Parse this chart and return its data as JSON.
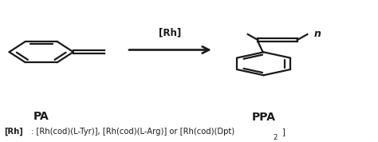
{
  "background_color": "#ffffff",
  "fig_width": 4.74,
  "fig_height": 1.78,
  "dpi": 100,
  "text_color": "#1a1a1a",
  "line_width": 1.6,
  "line_color": "#1a1a1a",
  "pa_label": "PA",
  "ppa_label": "PPA",
  "arrow_label": "[Rh]",
  "bottom_bold": "[Rh]",
  "bottom_colon": ": [Rh(cod)(L-Tyr)], [Rh(cod)(L-Arg)] or [Rh(cod)(Dpt)",
  "bottom_sub": "2",
  "bottom_close": "]"
}
